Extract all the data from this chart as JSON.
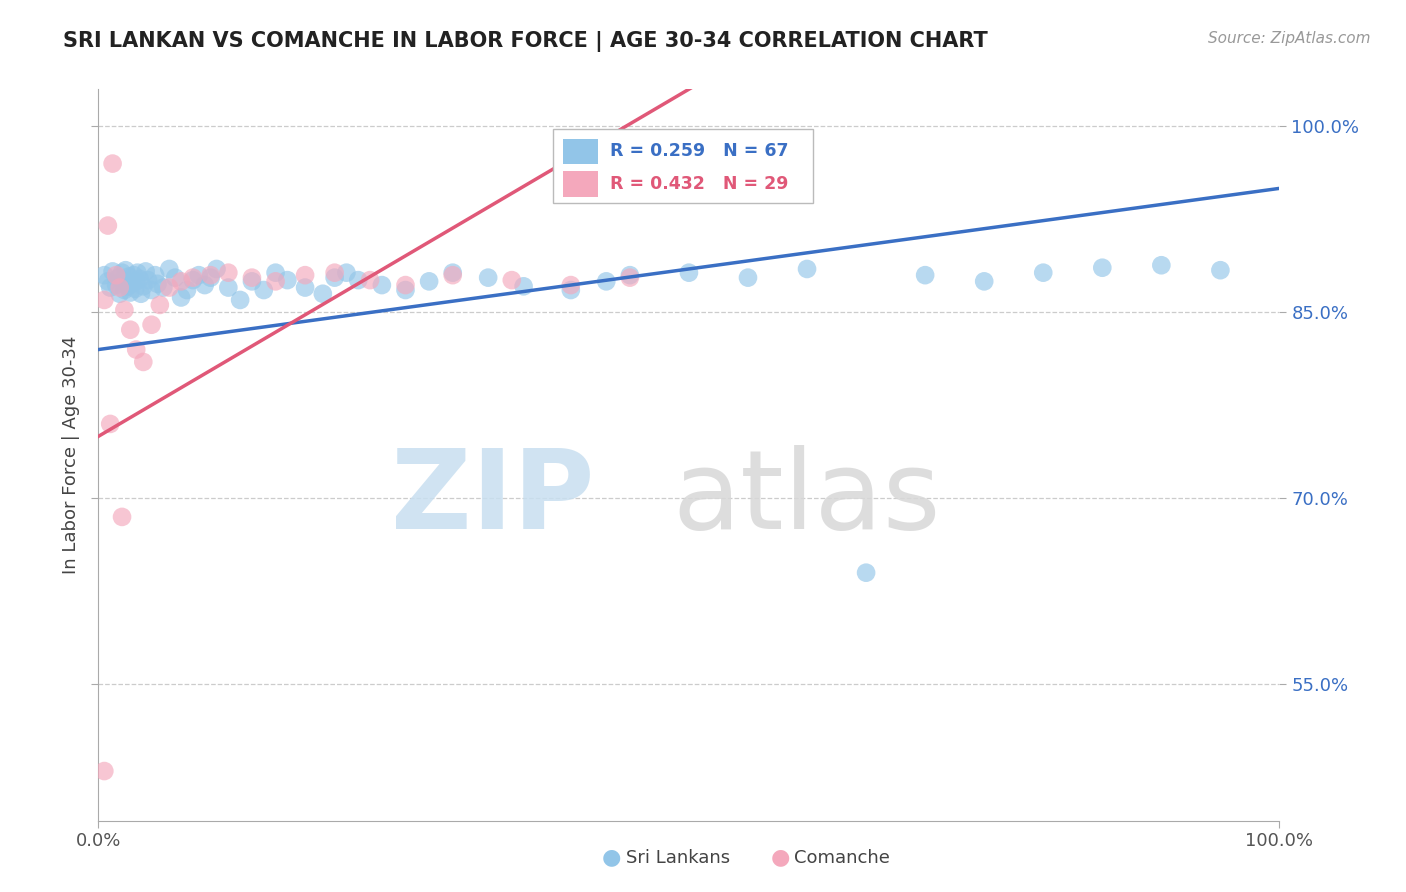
{
  "title": "SRI LANKAN VS COMANCHE IN LABOR FORCE | AGE 30-34 CORRELATION CHART",
  "source": "Source: ZipAtlas.com",
  "ylabel": "In Labor Force | Age 30-34",
  "xmin": 0.0,
  "xmax": 1.0,
  "ymin": 0.44,
  "ymax": 1.03,
  "sri_lankan_R": 0.259,
  "sri_lankan_N": 67,
  "comanche_R": 0.432,
  "comanche_N": 29,
  "sri_lankan_color": "#92C5E8",
  "comanche_color": "#F4A8BC",
  "sri_lankan_line_color": "#3A6FC4",
  "comanche_line_color": "#E05878",
  "ytick_vals": [
    0.55,
    0.7,
    0.85,
    1.0
  ],
  "ytick_labels": [
    "55.0%",
    "70.0%",
    "85.0%",
    "100.0%"
  ],
  "sri_lankans_x": [
    0.005,
    0.008,
    0.01,
    0.012,
    0.015,
    0.017,
    0.018,
    0.02,
    0.021,
    0.022,
    0.023,
    0.025,
    0.026,
    0.027,
    0.028,
    0.03,
    0.031,
    0.032,
    0.033,
    0.035,
    0.036,
    0.038,
    0.04,
    0.042,
    0.045,
    0.048,
    0.05,
    0.055,
    0.06,
    0.065,
    0.07,
    0.075,
    0.08,
    0.085,
    0.09,
    0.095,
    0.1,
    0.11,
    0.12,
    0.13,
    0.14,
    0.15,
    0.16,
    0.175,
    0.19,
    0.2,
    0.21,
    0.22,
    0.24,
    0.26,
    0.28,
    0.3,
    0.33,
    0.36,
    0.4,
    0.43,
    0.45,
    0.5,
    0.55,
    0.6,
    0.65,
    0.7,
    0.75,
    0.8,
    0.85,
    0.9,
    0.95
  ],
  "sri_lankans_y": [
    0.88,
    0.875,
    0.87,
    0.883,
    0.872,
    0.878,
    0.865,
    0.882,
    0.876,
    0.868,
    0.884,
    0.871,
    0.879,
    0.866,
    0.873,
    0.88,
    0.869,
    0.875,
    0.882,
    0.877,
    0.865,
    0.871,
    0.883,
    0.876,
    0.868,
    0.88,
    0.873,
    0.87,
    0.885,
    0.878,
    0.862,
    0.868,
    0.876,
    0.88,
    0.872,
    0.878,
    0.885,
    0.87,
    0.86,
    0.875,
    0.868,
    0.882,
    0.876,
    0.87,
    0.865,
    0.878,
    0.882,
    0.876,
    0.872,
    0.868,
    0.875,
    0.882,
    0.878,
    0.871,
    0.868,
    0.875,
    0.88,
    0.882,
    0.878,
    0.885,
    0.64,
    0.88,
    0.875,
    0.882,
    0.886,
    0.888,
    0.884
  ],
  "comanche_x": [
    0.005,
    0.008,
    0.012,
    0.015,
    0.018,
    0.022,
    0.027,
    0.032,
    0.038,
    0.045,
    0.052,
    0.06,
    0.07,
    0.08,
    0.095,
    0.11,
    0.13,
    0.15,
    0.175,
    0.2,
    0.23,
    0.26,
    0.3,
    0.35,
    0.4,
    0.45,
    0.005,
    0.01,
    0.02
  ],
  "comanche_y": [
    0.86,
    0.92,
    0.97,
    0.88,
    0.87,
    0.852,
    0.836,
    0.82,
    0.81,
    0.84,
    0.856,
    0.87,
    0.875,
    0.878,
    0.88,
    0.882,
    0.878,
    0.875,
    0.88,
    0.882,
    0.876,
    0.872,
    0.88,
    0.876,
    0.872,
    0.878,
    0.48,
    0.76,
    0.685
  ]
}
